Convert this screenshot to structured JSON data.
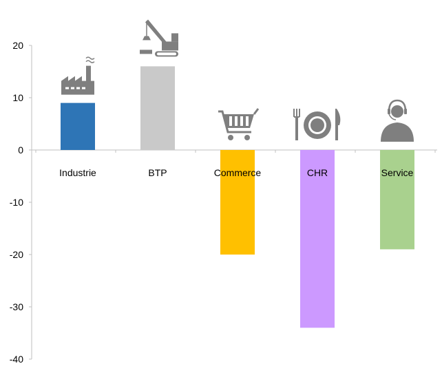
{
  "chart_data": {
    "type": "bar",
    "categories": [
      "Industrie",
      "BTP",
      "Commerce",
      "CHR",
      "Service"
    ],
    "values": [
      9,
      16,
      -20,
      -34,
      -19
    ],
    "colors": [
      "#2e75b6",
      "#c9c9c9",
      "#ffc000",
      "#cc99ff",
      "#a9d18e"
    ],
    "icons": [
      "factory-icon",
      "crane-icon",
      "shopping-cart-icon",
      "plate-cutlery-icon",
      "customer-service-headset-icon"
    ],
    "yticks": [
      "20",
      "10",
      "0",
      "-10",
      "-20",
      "-30",
      "-40"
    ],
    "ylim": [
      -40,
      20
    ],
    "grid": false,
    "icon_color": "#7f7f7f",
    "title": "",
    "xlabel": "",
    "ylabel": ""
  }
}
